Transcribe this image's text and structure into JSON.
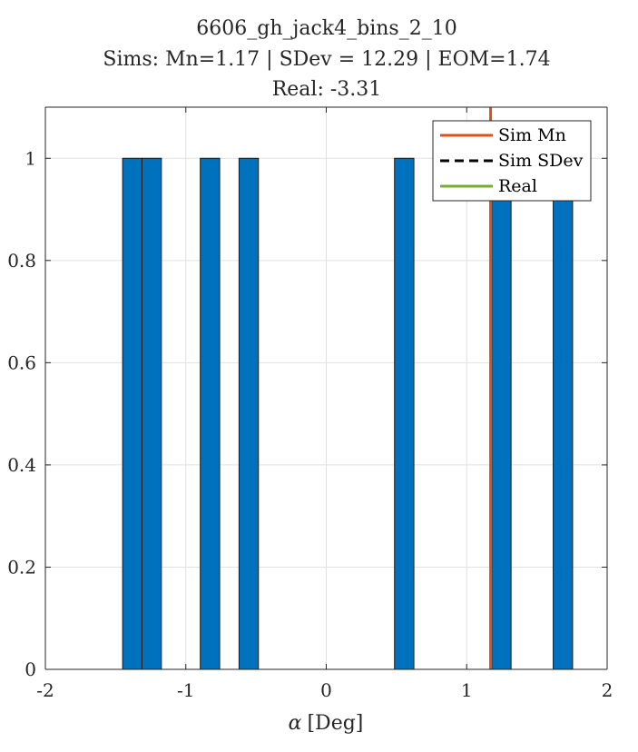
{
  "chart_data": {
    "type": "bar",
    "title_lines": [
      "6606_gh_jack4_bins_2_10",
      "Sims: Mn=1.17 | SDev = 12.29 | EOM=1.74",
      "Real: -3.31"
    ],
    "xlabel_symbol": "α",
    "xlabel_text": "[Deg]",
    "xlim": [
      -2,
      2
    ],
    "ylim": [
      0,
      1.1
    ],
    "xticks": [
      -2,
      -1,
      0,
      1,
      2
    ],
    "xtick_labels": [
      "-2",
      "-1",
      "0",
      "1",
      "2"
    ],
    "yticks": [
      0,
      0.2,
      0.4,
      0.6,
      0.8,
      1
    ],
    "ytick_labels": [
      "0",
      "0.2",
      "0.4",
      "0.6",
      "0.8",
      "1"
    ],
    "grid": true,
    "bin_width": 0.138,
    "bars": [
      {
        "left": -1.45,
        "value": 1
      },
      {
        "left": -1.312,
        "value": 1
      },
      {
        "left": -0.897,
        "value": 1
      },
      {
        "left": -0.621,
        "value": 1
      },
      {
        "left": 0.486,
        "value": 1
      },
      {
        "left": 1.178,
        "value": 1
      },
      {
        "left": 1.616,
        "value": 1
      }
    ],
    "bar_color": "#0072BD",
    "sim_mean_line": {
      "x": 1.17,
      "color": "#D95319"
    },
    "legend": {
      "position": "top-right",
      "entries": [
        {
          "label": "Sim Mn",
          "color": "#D95319",
          "style": "solid"
        },
        {
          "label": "Sim SDev",
          "color": "#000000",
          "style": "dashed"
        },
        {
          "label": "Real",
          "color": "#77AC30",
          "style": "solid"
        }
      ]
    }
  }
}
